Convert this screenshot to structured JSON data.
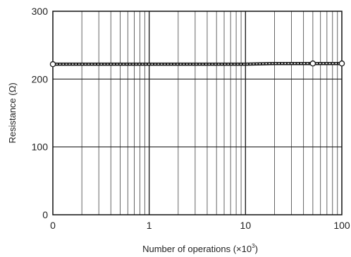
{
  "chart_data": {
    "type": "line",
    "xlabel": "Number of operations (×10",
    "xlabel_exponent": "3",
    "xlabel_tail": ")",
    "ylabel": "Resistance (Ω)",
    "x_scale": "log",
    "x_axis_origin_label": "0",
    "xlim": [
      0.1,
      100
    ],
    "ylim": [
      0,
      300
    ],
    "x_ticks": [
      {
        "value": 0.1,
        "label": "0"
      },
      {
        "value": 1,
        "label": "1"
      },
      {
        "value": 10,
        "label": "10"
      },
      {
        "value": 100,
        "label": "100"
      }
    ],
    "y_ticks": [
      0,
      100,
      200,
      300
    ],
    "grid": true,
    "series": [
      {
        "x": [
          0.1,
          0.2,
          0.5,
          1,
          2,
          5,
          10,
          20,
          50,
          100
        ],
        "values": [
          222,
          222,
          222,
          222,
          222,
          222,
          222,
          223,
          223,
          223
        ],
        "markers": [
          0.1,
          50,
          100
        ],
        "color": "#1a1a1a"
      }
    ]
  }
}
